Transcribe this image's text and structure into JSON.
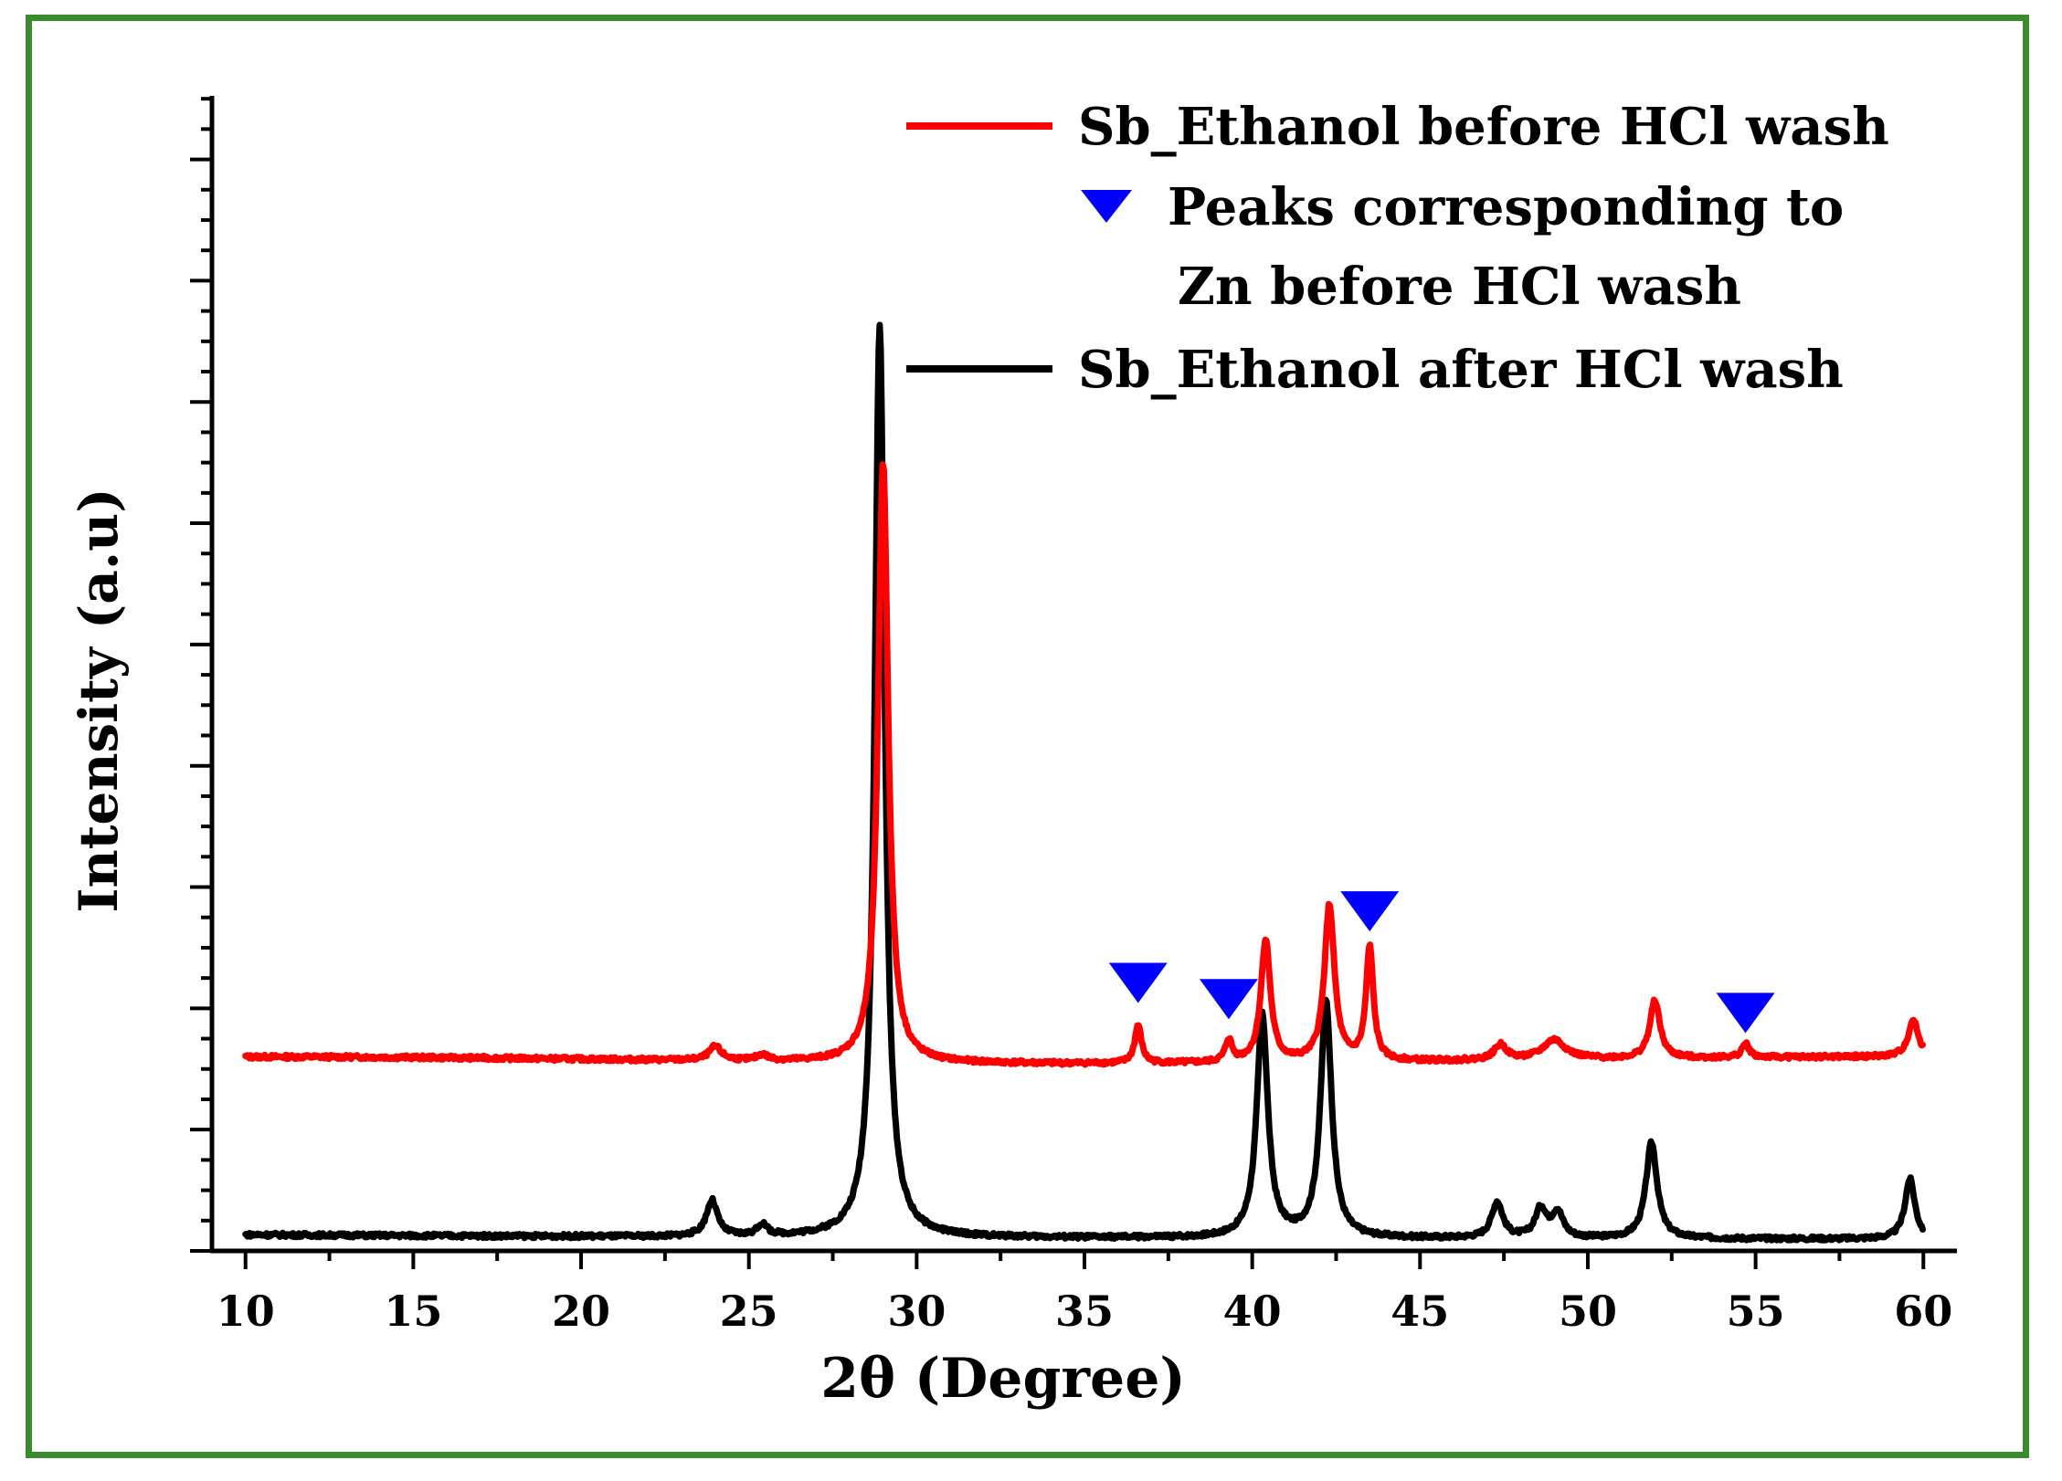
{
  "chart_data": {
    "type": "line",
    "xlabel": "2θ (Degree)",
    "ylabel": "Intensity (a.u)",
    "xlim": [
      9,
      61
    ],
    "ylim": [
      0,
      100
    ],
    "xticks": [
      10,
      15,
      20,
      25,
      30,
      35,
      40,
      45,
      50,
      55,
      60
    ],
    "y_tick_labels_shown": false,
    "legend_position": "top-right",
    "legend": [
      {
        "label": "Sb_Ethanol before HCl wash",
        "marker": "line",
        "color": "#ff0000"
      },
      {
        "label": "Peaks corresponding to",
        "label2": "Zn before HCl wash",
        "marker": "triangle-down",
        "color": "#0000ff"
      },
      {
        "label": "Sb_Ethanol after HCl wash",
        "marker": "line",
        "color": "#000000"
      }
    ],
    "series": [
      {
        "name": "Sb_Ethanol before HCl wash",
        "color": "#ff0000",
        "baseline": 16.5,
        "peaks": [
          {
            "x": 24.0,
            "height": 1.2,
            "width": 0.22
          },
          {
            "x": 25.4,
            "height": 0.5,
            "width": 0.2
          },
          {
            "x": 29.0,
            "height": 52.0,
            "width": 0.18
          },
          {
            "x": 36.6,
            "height": 3.3,
            "width": 0.12
          },
          {
            "x": 39.3,
            "height": 1.9,
            "width": 0.12
          },
          {
            "x": 40.4,
            "height": 10.6,
            "width": 0.17
          },
          {
            "x": 42.3,
            "height": 13.5,
            "width": 0.18
          },
          {
            "x": 43.5,
            "height": 9.8,
            "width": 0.13
          },
          {
            "x": 47.4,
            "height": 1.3,
            "width": 0.22
          },
          {
            "x": 49.0,
            "height": 1.7,
            "width": 0.4
          },
          {
            "x": 52.0,
            "height": 5.0,
            "width": 0.18
          },
          {
            "x": 54.7,
            "height": 1.2,
            "width": 0.13
          },
          {
            "x": 59.7,
            "height": 3.2,
            "width": 0.18
          }
        ]
      },
      {
        "name": "Sb_Ethanol after HCl wash",
        "color": "#000000",
        "baseline": 1.0,
        "peaks": [
          {
            "x": 23.9,
            "height": 3.1,
            "width": 0.2
          },
          {
            "x": 25.4,
            "height": 1.0,
            "width": 0.17
          },
          {
            "x": 28.9,
            "height": 79.0,
            "width": 0.18
          },
          {
            "x": 40.3,
            "height": 19.2,
            "width": 0.2
          },
          {
            "x": 42.2,
            "height": 20.4,
            "width": 0.2
          },
          {
            "x": 47.3,
            "height": 3.1,
            "width": 0.2
          },
          {
            "x": 48.6,
            "height": 2.5,
            "width": 0.2
          },
          {
            "x": 49.1,
            "height": 2.2,
            "width": 0.2
          },
          {
            "x": 51.9,
            "height": 8.3,
            "width": 0.2
          },
          {
            "x": 59.6,
            "height": 5.2,
            "width": 0.18
          }
        ]
      }
    ],
    "markers": {
      "shape": "triangle-down",
      "color": "#0000ff",
      "points": [
        {
          "x": 36.6,
          "y": 23.2
        },
        {
          "x": 39.3,
          "y": 21.8
        },
        {
          "x": 43.5,
          "y": 29.4
        },
        {
          "x": 54.7,
          "y": 20.6
        }
      ]
    }
  }
}
